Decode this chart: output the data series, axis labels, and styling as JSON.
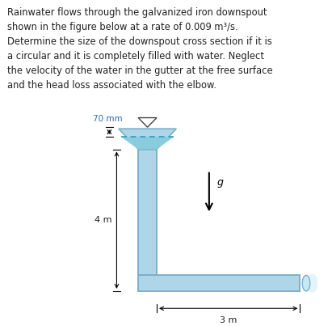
{
  "background_color": "#ffffff",
  "pipe_color": "#aed6e8",
  "pipe_edge_color": "#7ab0c8",
  "text_color": "#222222",
  "paragraph": "Rainwater flows through the galvanized iron downspout\nshown in the figure below at a rate of 0.009 m³/s.\nDetermine the size of the downspout cross section if it is\na circular and it is completely filled with water. Neglect\nthe velocity of the water in the gutter at the free surface\nand the head loss associated with the elbow.",
  "label_70mm": "70 mm",
  "label_4m": "4 m",
  "label_3m": "3 m",
  "label_g": "g",
  "water_color": "#55aacc",
  "water_fill_color": "#88ccdd"
}
